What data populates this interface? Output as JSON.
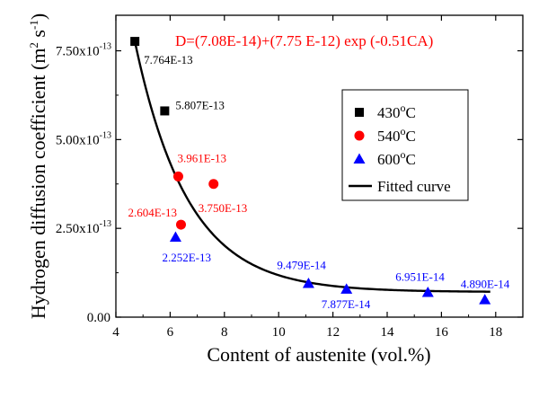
{
  "chart_data": {
    "type": "scatter",
    "equation": "D=(7.08E-14)+(7.75 E-12) exp (-0.51CA)",
    "xlabel": "Content of austenite (vol.%)",
    "ylabel": {
      "main": "Hydrogen diffusion coefficient (m",
      "sup1": "2",
      "mid": " s",
      "sup2": "-1",
      "end": ")"
    },
    "xlim": [
      4,
      19
    ],
    "ylim": [
      0,
      8.5
    ],
    "y_scale_note": "values ×10^-13",
    "x_ticks": [
      {
        "v": 4,
        "label": "4"
      },
      {
        "v": 6,
        "label": "6"
      },
      {
        "v": 8,
        "label": "8"
      },
      {
        "v": 10,
        "label": "10"
      },
      {
        "v": 12,
        "label": "12"
      },
      {
        "v": 14,
        "label": "14"
      },
      {
        "v": 16,
        "label": "16"
      },
      {
        "v": 18,
        "label": "18"
      }
    ],
    "y_ticks": [
      {
        "v": 0,
        "base": "0.00",
        "exp": ""
      },
      {
        "v": 2.5,
        "base": "2.50x10",
        "exp": "-13"
      },
      {
        "v": 5.0,
        "base": "5.00x10",
        "exp": "-13"
      },
      {
        "v": 7.5,
        "base": "7.50x10",
        "exp": "-13"
      }
    ],
    "series": [
      {
        "name": "430",
        "name_sup": "o",
        "name_suffix": "C",
        "marker": "square",
        "color": "#000000",
        "points": [
          {
            "x": 4.7,
            "y": 7.764,
            "label": "7.764E-13"
          },
          {
            "x": 5.8,
            "y": 5.807,
            "label": "5.807E-13"
          }
        ]
      },
      {
        "name": "540",
        "name_sup": "o",
        "name_suffix": "C",
        "marker": "circle",
        "color": "#ff0000",
        "points": [
          {
            "x": 6.3,
            "y": 3.961,
            "label": "3.961E-13"
          },
          {
            "x": 7.6,
            "y": 3.75,
            "label": "3.750E-13"
          },
          {
            "x": 6.4,
            "y": 2.604,
            "label": "2.604E-13"
          }
        ]
      },
      {
        "name": "600",
        "name_sup": "o",
        "name_suffix": "C",
        "marker": "triangle",
        "color": "#0000ff",
        "points": [
          {
            "x": 6.2,
            "y": 2.252,
            "label": "2.252E-13"
          },
          {
            "x": 11.1,
            "y": 0.948,
            "label": "9.479E-14"
          },
          {
            "x": 12.5,
            "y": 0.788,
            "label": "7.877E-14"
          },
          {
            "x": 15.5,
            "y": 0.695,
            "label": "6.951E-14"
          },
          {
            "x": 17.6,
            "y": 0.489,
            "label": "4.890E-14"
          }
        ]
      }
    ],
    "fit": {
      "name": "Fitted curve",
      "a": 0.708,
      "b": 77.5,
      "k": 0.51,
      "x_start": 4.7,
      "x_end": 17.8,
      "color": "#000000"
    },
    "legend_position": "top-right",
    "grid": false
  }
}
